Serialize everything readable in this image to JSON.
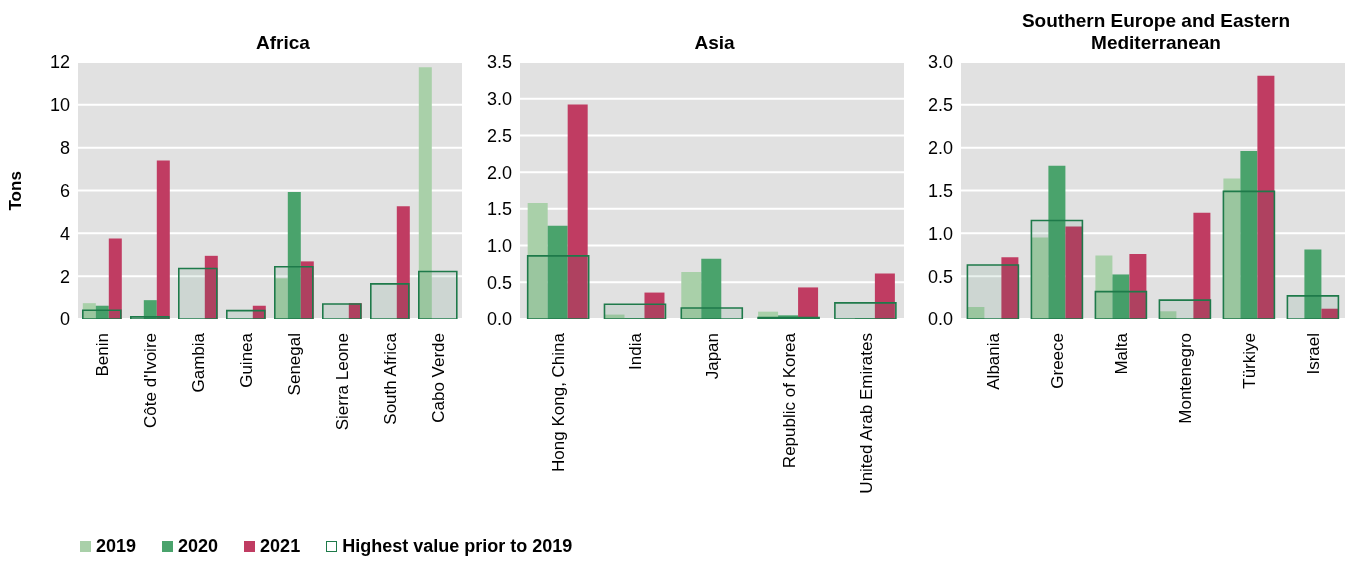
{
  "chart_data": [
    {
      "type": "bar",
      "title": "Africa",
      "ylabel": "Tons",
      "categories": [
        "Benin",
        "Côte d'Ivoire",
        "Gambia",
        "Guinea",
        "Senegal",
        "Sierra Leone",
        "South Africa",
        "Cabo Verde"
      ],
      "series": [
        {
          "name": "2019",
          "color": "#a9d0a9",
          "values": [
            0.74,
            null,
            0,
            0,
            1.9,
            0,
            0,
            11.75
          ]
        },
        {
          "name": "2020",
          "color": "#4aa36c",
          "values": [
            0.62,
            0.88,
            0,
            0,
            5.93,
            0,
            0,
            0
          ]
        },
        {
          "name": "2021",
          "color": "#c03c62",
          "values": [
            3.76,
            7.4,
            2.95,
            0.62,
            2.69,
            0.74,
            5.27,
            0
          ]
        },
        {
          "name": "Highest value prior to 2019",
          "line_style": "solid",
          "color": "#1e7a4a",
          "values": [
            0.41,
            0.1,
            2.36,
            0.39,
            2.44,
            0.7,
            1.64,
            2.22
          ]
        }
      ],
      "ylim": [
        0,
        12
      ],
      "yticks": [
        0,
        2,
        4,
        6,
        8,
        10,
        12
      ],
      "grid": "y",
      "legend": "bottom"
    },
    {
      "type": "bar",
      "title": "Asia",
      "categories": [
        "Hong Kong, China",
        "India",
        "Japan",
        "Republic of Korea",
        "United Arab Emirates"
      ],
      "series": [
        {
          "color": "#a9d0a9",
          "values": [
            1.58,
            0.06,
            0.64,
            0.1,
            0
          ]
        },
        {
          "color": "#4aa36c",
          "values": [
            1.27,
            0.01,
            0.82,
            0.05,
            0.01
          ]
        },
        {
          "color": "#c03c62",
          "values": [
            2.92,
            0.36,
            null,
            0.43,
            0.62
          ]
        },
        {
          "line_style": "solid",
          "color": "#1e7a4a",
          "values": [
            0.86,
            0.2,
            0.15,
            0.02,
            0.22
          ]
        }
      ],
      "ylim": [
        0,
        3.5
      ],
      "yticks": [
        {
          "value": 0,
          "label": "0.0"
        },
        {
          "value": 0.5,
          "label": "0.5"
        },
        {
          "value": 1,
          "label": "1.0"
        },
        {
          "value": 1.5,
          "label": "1.5"
        },
        {
          "value": 2,
          "label": "2.0"
        },
        {
          "value": 2.5,
          "label": "2.5"
        },
        {
          "value": 3,
          "label": "3.0"
        },
        {
          "value": 3.5,
          "label": "3.5"
        }
      ],
      "grid": "y"
    },
    {
      "type": "bar",
      "title": "Southern Europe and Eastern Mediterranean",
      "categories": [
        "Albania",
        "Greece",
        "Malta",
        "Montenegro",
        "Türkiye",
        "Israel"
      ],
      "series": [
        {
          "color": "#a9d0a9",
          "values": [
            0.14,
            0.95,
            0.74,
            0.09,
            1.64,
            0
          ]
        },
        {
          "color": "#4aa36c",
          "values": [
            0,
            1.79,
            0.52,
            0,
            1.96,
            0.81
          ]
        },
        {
          "color": "#c03c62",
          "values": [
            0.72,
            1.08,
            0.76,
            1.24,
            2.84,
            0.12
          ]
        },
        {
          "line_style": "solid",
          "color": "#1e7a4a",
          "values": [
            0.63,
            1.15,
            0.32,
            0.22,
            1.49,
            0.27
          ]
        }
      ],
      "ylim": [
        0,
        3
      ],
      "yticks": [
        {
          "value": 0,
          "label": "0.0"
        },
        {
          "value": 0.5,
          "label": "0.5"
        },
        {
          "value": 1,
          "label": "1.0"
        },
        {
          "value": 1.5,
          "label": "1.5"
        },
        {
          "value": 2,
          "label": "2.0"
        },
        {
          "value": 2.5,
          "label": "2.5"
        },
        {
          "value": 3,
          "label": "3.0"
        }
      ],
      "grid": "y"
    }
  ]
}
